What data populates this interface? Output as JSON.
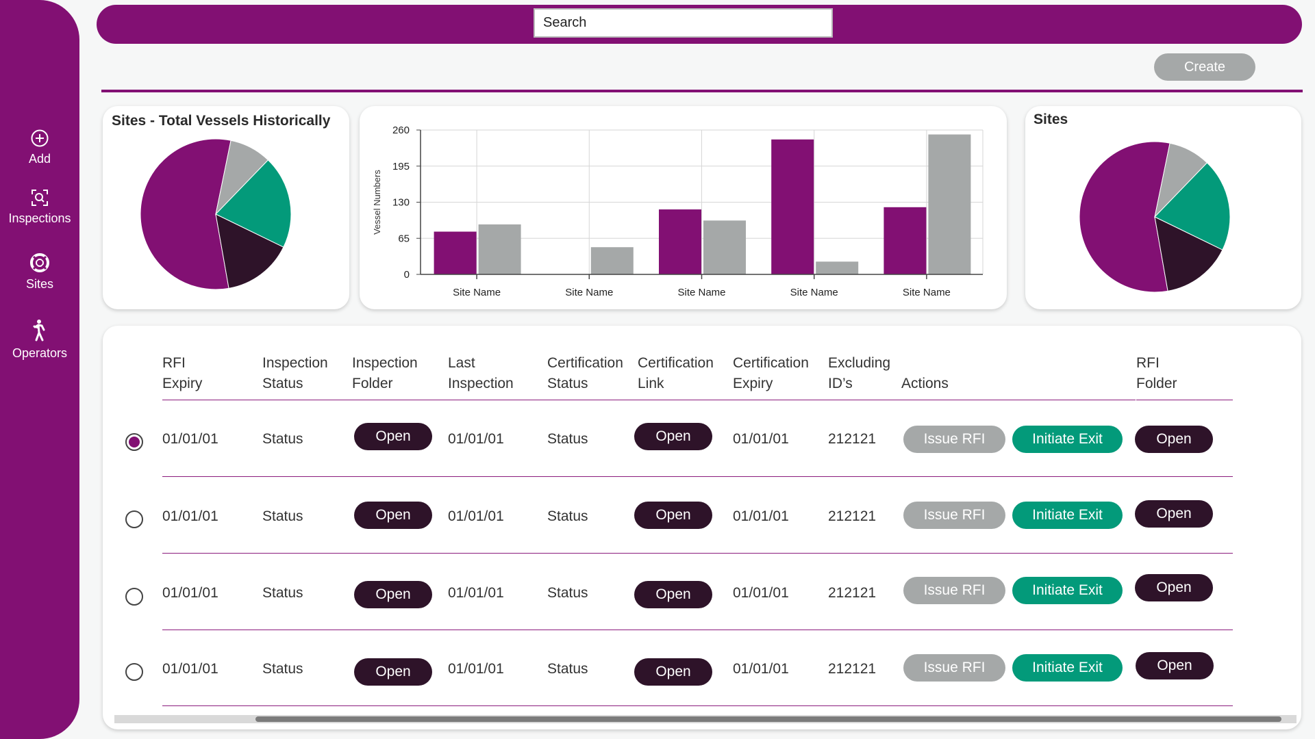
{
  "sidebar": {
    "items": [
      {
        "label": "Add",
        "icon": "plus-circle-icon"
      },
      {
        "label": "Inspections",
        "icon": "scan-search-icon"
      },
      {
        "label": "Sites",
        "icon": "lifebuoy-icon"
      },
      {
        "label": "Operators",
        "icon": "person-walking-icon"
      }
    ]
  },
  "header": {
    "search_placeholder": "Search",
    "create_label": "Create"
  },
  "colors": {
    "purple": "#821073",
    "grey": "#a5a8a8",
    "green": "#039a7a",
    "dark": "#2e1329"
  },
  "pie_left": {
    "title": "Sites - Total Vessels Historically",
    "chart_data": {
      "type": "pie",
      "slices": [
        {
          "value": 56,
          "color": "#821073"
        },
        {
          "value": 9,
          "color": "#a5a8a8"
        },
        {
          "value": 20,
          "color": "#039a7a"
        },
        {
          "value": 15,
          "color": "#2e1329"
        }
      ]
    }
  },
  "pie_right": {
    "title": "Sites",
    "chart_data": {
      "type": "pie",
      "slices": [
        {
          "value": 56,
          "color": "#821073"
        },
        {
          "value": 9,
          "color": "#a5a8a8"
        },
        {
          "value": 20,
          "color": "#039a7a"
        },
        {
          "value": 15,
          "color": "#2e1329"
        }
      ]
    }
  },
  "bar_chart": {
    "chart_data": {
      "type": "bar",
      "categories": [
        "Site Name",
        "Site Name",
        "Site Name",
        "Site Name",
        "Site Name"
      ],
      "series": [
        {
          "values": [
            77,
            0,
            117,
            243,
            121
          ],
          "color": "#821073"
        },
        {
          "values": [
            90,
            49,
            97,
            23,
            252
          ],
          "color": "#a5a8a8"
        }
      ],
      "ylabel": "Vessel Numbers",
      "xlabel": "",
      "yticks": [
        0,
        65,
        130,
        195,
        260
      ],
      "ylim": [
        0,
        260
      ],
      "grid": true
    }
  },
  "table": {
    "headers": [
      [
        "RFI",
        "Expiry"
      ],
      [
        "Inspection",
        "Status"
      ],
      [
        "Inspection",
        "Folder"
      ],
      [
        "Last",
        "Inspection"
      ],
      [
        "Certification",
        "Status"
      ],
      [
        "Certification",
        "Link"
      ],
      [
        "Certification",
        "Expiry"
      ],
      [
        "Excluding",
        "ID’s"
      ],
      [
        "",
        "Actions"
      ],
      [
        "RFI",
        "Folder"
      ]
    ],
    "rows": [
      {
        "selected": true,
        "rfi_expiry": "01/01/01",
        "inspection_status": "Status",
        "inspection_folder": "Open",
        "last_inspection": "01/01/01",
        "cert_status": "Status",
        "cert_link": "Open",
        "cert_expiry": "01/01/01",
        "excluding_ids": "212121",
        "issue_rfi": "Issue RFI",
        "initiate_exit": "Initiate Exit",
        "rfi_folder": "Open"
      },
      {
        "selected": false,
        "rfi_expiry": "01/01/01",
        "inspection_status": "Status",
        "inspection_folder": "Open",
        "last_inspection": "01/01/01",
        "cert_status": "Status",
        "cert_link": "Open",
        "cert_expiry": "01/01/01",
        "excluding_ids": "212121",
        "issue_rfi": "Issue RFI",
        "initiate_exit": "Initiate Exit",
        "rfi_folder": "Open"
      },
      {
        "selected": false,
        "rfi_expiry": "01/01/01",
        "inspection_status": "Status",
        "inspection_folder": "Open",
        "last_inspection": "01/01/01",
        "cert_status": "Status",
        "cert_link": "Open",
        "cert_expiry": "01/01/01",
        "excluding_ids": "212121",
        "issue_rfi": "Issue RFI",
        "initiate_exit": "Initiate Exit",
        "rfi_folder": "Open"
      },
      {
        "selected": false,
        "rfi_expiry": "01/01/01",
        "inspection_status": "Status",
        "inspection_folder": "Open",
        "last_inspection": "01/01/01",
        "cert_status": "Status",
        "cert_link": "Open",
        "cert_expiry": "01/01/01",
        "excluding_ids": "212121",
        "issue_rfi": "Issue RFI",
        "initiate_exit": "Initiate Exit",
        "rfi_folder": "Open"
      }
    ]
  }
}
